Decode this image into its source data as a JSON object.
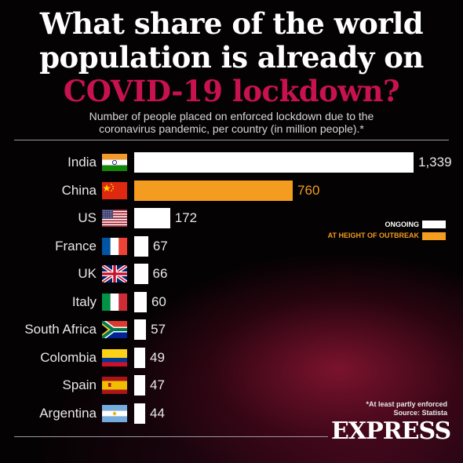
{
  "headline": {
    "line1": "What share of the world",
    "line2": "population is already on",
    "line3": "COVID-19 lockdown?"
  },
  "subtitle": {
    "line1": "Number of people placed on enforced lockdown due to the",
    "line2": "coronavirus pandemic, per country (in million people).*"
  },
  "legend": {
    "ongoing": "ONGOING",
    "height": "AT HEIGHT OF OUTBREAK"
  },
  "footnote": {
    "line1": "*At least partly enforced",
    "line2": "Source: Statista"
  },
  "brand": "EXPRESS",
  "colors": {
    "ongoing": "#ffffff",
    "height_of_outbreak": "#f39c1f",
    "headline_accent": "#c8124f"
  },
  "chart_data": {
    "type": "bar",
    "orientation": "horizontal",
    "categories": [
      "India",
      "China",
      "US",
      "France",
      "UK",
      "Italy",
      "South Africa",
      "Colombia",
      "Spain",
      "Argentina"
    ],
    "values": [
      1339,
      760,
      172,
      67,
      66,
      60,
      57,
      49,
      47,
      44
    ],
    "value_labels": [
      "1,339",
      "760",
      "172",
      "67",
      "66",
      "60",
      "57",
      "49",
      "47",
      "44"
    ],
    "status": [
      "ongoing",
      "height",
      "ongoing",
      "ongoing",
      "ongoing",
      "ongoing",
      "ongoing",
      "ongoing",
      "ongoing",
      "ongoing"
    ],
    "flags": [
      "india-flag-icon",
      "china-flag-icon",
      "us-flag-icon",
      "france-flag-icon",
      "uk-flag-icon",
      "italy-flag-icon",
      "south-africa-flag-icon",
      "colombia-flag-icon",
      "spain-flag-icon",
      "argentina-flag-icon"
    ],
    "title": "",
    "xlabel": "",
    "ylabel": "",
    "grid": false,
    "legend_position": "right"
  }
}
